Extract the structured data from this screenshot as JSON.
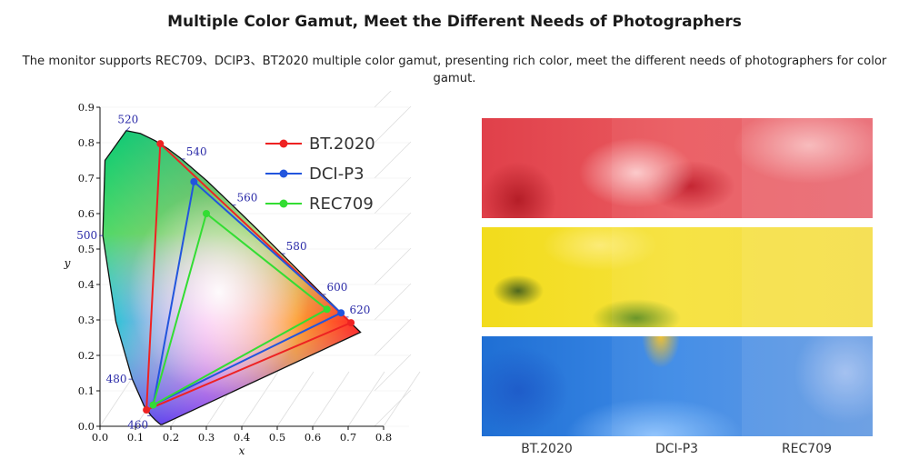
{
  "header": {
    "title": "Multiple Color Gamut, Meet the Different Needs of Photographers",
    "subtitle": "The monitor supports REC709、DCIP3、BT2020 multiple color gamut, presenting rich color, meet the different needs of photographers for color gamut."
  },
  "diagram": {
    "xlabel": "x",
    "ylabel": "y",
    "xlim": [
      0,
      0.8
    ],
    "ylim": [
      0,
      0.9
    ],
    "x_ticks": [
      "0.0",
      "0.1",
      "0.2",
      "0.3",
      "0.4",
      "0.5",
      "0.6",
      "0.7",
      "0.8"
    ],
    "y_ticks": [
      "0.0",
      "0.1",
      "0.2",
      "0.3",
      "0.4",
      "0.5",
      "0.6",
      "0.7",
      "0.8",
      "0.9"
    ],
    "wavelengths": [
      {
        "label": "460",
        "x": 0.144,
        "y": 0.03
      },
      {
        "label": "480",
        "x": 0.091,
        "y": 0.133
      },
      {
        "label": "500",
        "x": 0.008,
        "y": 0.538
      },
      {
        "label": "520",
        "x": 0.074,
        "y": 0.834
      },
      {
        "label": "540",
        "x": 0.23,
        "y": 0.754
      },
      {
        "label": "560",
        "x": 0.373,
        "y": 0.624
      },
      {
        "label": "580",
        "x": 0.512,
        "y": 0.487
      },
      {
        "label": "600",
        "x": 0.627,
        "y": 0.372
      },
      {
        "label": "620",
        "x": 0.691,
        "y": 0.308
      }
    ],
    "gamuts": [
      {
        "name": "BT.2020",
        "color": "#ee2222",
        "points": [
          [
            0.708,
            0.292
          ],
          [
            0.17,
            0.797
          ],
          [
            0.131,
            0.046
          ]
        ]
      },
      {
        "name": "DCI-P3",
        "color": "#2255dd",
        "points": [
          [
            0.68,
            0.32
          ],
          [
            0.265,
            0.69
          ],
          [
            0.15,
            0.06
          ]
        ]
      },
      {
        "name": "REC709",
        "color": "#33dd33",
        "points": [
          [
            0.64,
            0.33
          ],
          [
            0.3,
            0.6
          ],
          [
            0.15,
            0.06
          ]
        ]
      }
    ]
  },
  "photos": {
    "captions": [
      "BT.2020",
      "DCI-P3",
      "REC709"
    ]
  },
  "colors": {
    "bt2020": "#ee2222",
    "dcip3": "#2255dd",
    "rec709": "#33dd33",
    "wavelength_label": "#2b2ba8"
  }
}
